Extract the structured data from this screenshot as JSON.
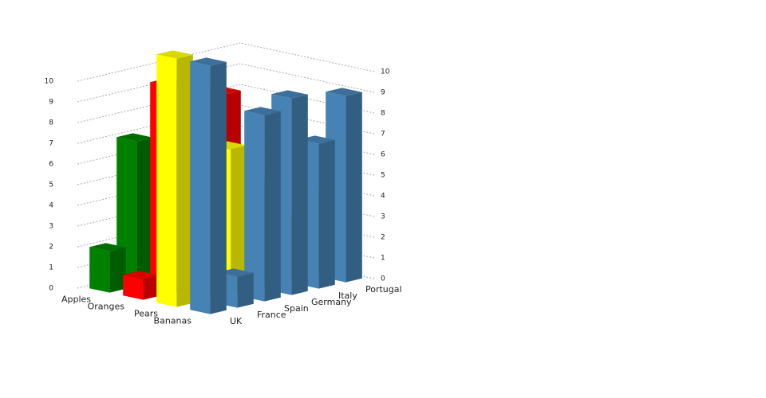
{
  "chart_data": {
    "type": "bar3d",
    "categories": [
      "UK",
      "France",
      "Spain",
      "Germany",
      "Italy",
      "Portugal"
    ],
    "series": [
      {
        "name": "Apples",
        "color": "#008000",
        "values": [
          2,
          7,
          3,
          4,
          2,
          5
        ]
      },
      {
        "name": "Oranges",
        "color": "#ff0000",
        "values": [
          1,
          10,
          4,
          9,
          3,
          2
        ]
      },
      {
        "name": "Pears",
        "color": "#ffff00",
        "values": [
          12,
          10,
          7,
          5,
          3,
          4
        ]
      },
      {
        "name": "Bananas",
        "color": "#4682b4",
        "values": [
          12,
          1.5,
          9,
          9.5,
          7,
          9
        ]
      }
    ],
    "ylim": [
      0,
      10
    ],
    "yticks": [
      0,
      1,
      2,
      3,
      4,
      5,
      6,
      7,
      8,
      9,
      10
    ],
    "grid": true
  }
}
